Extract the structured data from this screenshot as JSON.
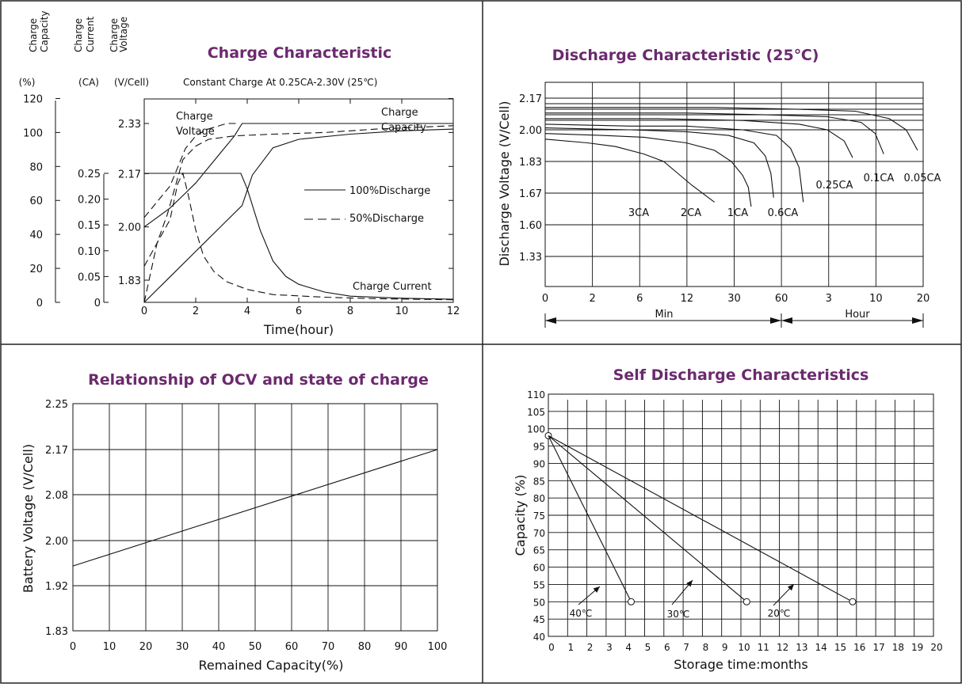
{
  "colors": {
    "title": "#6b2a6e",
    "line": "#111111",
    "grid": "#111111",
    "frame": "#222222"
  },
  "chart_data": [
    {
      "id": "charge",
      "type": "line",
      "title": "Charge Characteristic",
      "subtitle": "Constant Charge At 0.25CA-2.30V  (25℃)",
      "xlabel": "Time(hour)",
      "x_ticks": [
        "0",
        "2",
        "4",
        "6",
        "8",
        "10",
        "12"
      ],
      "xlim": [
        0,
        12
      ],
      "axes": [
        {
          "key": "capacity",
          "header": [
            "Charge",
            "Capacity"
          ],
          "unit": "(%)",
          "ticks": [
            "120",
            "100",
            "80",
            "60",
            "40",
            "20",
            "0"
          ],
          "lim": [
            0,
            120
          ]
        },
        {
          "key": "current",
          "header": [
            "Charge",
            "Current"
          ],
          "unit": "(CA)",
          "ticks": [
            "0.25",
            "0.20",
            "0.15",
            "0.10",
            "0.05",
            "0"
          ],
          "lim": [
            0,
            0.25
          ]
        },
        {
          "key": "voltage",
          "header": [
            "Charge",
            "Voltage"
          ],
          "unit": "(V/Cell)",
          "ticks": [
            "2.33",
            "2.17",
            "2.00",
            "1.83"
          ],
          "lim": [
            1.83,
            2.33
          ]
        }
      ],
      "legend": [
        {
          "label": "100%Discharge",
          "dash": "solid"
        },
        {
          "label": "50%Discharge",
          "dash": "dashed"
        }
      ],
      "annotations": {
        "voltage": [
          "Charge",
          "Voltage"
        ],
        "capacity": [
          "Charge",
          "Capacity"
        ],
        "current": "Charge Current"
      },
      "series": [
        {
          "quantity": "voltage",
          "discharge": "100%",
          "dash": "solid",
          "x": [
            0,
            0.5,
            1,
            1.5,
            2,
            2.5,
            3,
            3.5,
            3.8,
            5,
            7,
            9,
            12
          ],
          "y": [
            2.0,
            2.03,
            2.06,
            2.1,
            2.14,
            2.19,
            2.24,
            2.29,
            2.33,
            2.33,
            2.33,
            2.33,
            2.33
          ]
        },
        {
          "quantity": "voltage",
          "discharge": "50%",
          "dash": "dashed",
          "x": [
            0,
            0.3,
            0.6,
            1.0,
            1.3,
            1.6,
            2,
            2.4,
            2.8,
            3.2,
            3.6
          ],
          "y": [
            2.03,
            2.06,
            2.09,
            2.13,
            2.19,
            2.25,
            2.29,
            2.31,
            2.32,
            2.33,
            2.33
          ]
        },
        {
          "quantity": "capacity",
          "discharge": "100%",
          "dash": "solid",
          "x": [
            0,
            1,
            2,
            3,
            3.8,
            4.2,
            5,
            6,
            8,
            10,
            12
          ],
          "y": [
            0,
            15,
            30,
            45,
            57,
            75,
            91,
            96,
            99,
            101,
            102
          ]
        },
        {
          "quantity": "capacity",
          "discharge": "50%",
          "dash": "dashed",
          "x": [
            0,
            0.5,
            0.9,
            1.5,
            2,
            2.5,
            3.5,
            5,
            7,
            9,
            12
          ],
          "y": [
            0,
            35,
            52,
            84,
            92,
            96,
            98,
            99,
            100,
            102,
            104
          ]
        },
        {
          "quantity": "current",
          "discharge": "100%",
          "dash": "solid",
          "x": [
            0,
            3.75,
            4,
            4.5,
            5,
            5.5,
            6,
            7,
            8,
            10,
            12
          ],
          "y": [
            0.25,
            0.25,
            0.22,
            0.14,
            0.08,
            0.05,
            0.035,
            0.02,
            0.012,
            0.008,
            0.006
          ]
        },
        {
          "quantity": "current",
          "discharge": "50%",
          "dash": "dashed",
          "x": [
            0,
            1.0,
            1.3,
            1.5,
            1.7,
            2,
            2.3,
            2.7,
            3.2,
            4,
            5,
            7,
            9,
            12
          ],
          "y": [
            0.07,
            0.16,
            0.23,
            0.25,
            0.21,
            0.14,
            0.09,
            0.06,
            0.04,
            0.025,
            0.015,
            0.01,
            0.007,
            0.005
          ]
        }
      ]
    },
    {
      "id": "discharge",
      "type": "line",
      "title": "Discharge Characteristic  (25℃)",
      "ylabel": "Discharge Voltage (V/Cell)",
      "y_ticks": [
        "2.17",
        "2.00",
        "1.83",
        "1.67",
        "1.60",
        "1.33"
      ],
      "x_ticks": [
        "0",
        "2",
        "6",
        "12",
        "30",
        "60",
        "3",
        "10",
        "20"
      ],
      "x_units": [
        {
          "label": "Min",
          "from": "0",
          "to": "60"
        },
        {
          "label": "Hour",
          "from": "60",
          "to": "20"
        }
      ],
      "grid": true,
      "series": [
        {
          "name": "3CA",
          "x": [
            0,
            1.5,
            2.5,
            3.5,
            4.2,
            4.7,
            5.2,
            6
          ],
          "y": [
            1.95,
            1.93,
            1.91,
            1.87,
            1.83,
            1.77,
            1.71,
            1.65
          ]
        },
        {
          "name": "2CA",
          "x": [
            0,
            2,
            3.5,
            5,
            6,
            6.6,
            7,
            7.2,
            7.3
          ],
          "y": [
            1.98,
            1.97,
            1.96,
            1.93,
            1.89,
            1.83,
            1.76,
            1.7,
            1.64
          ]
        },
        {
          "name": "1CA",
          "x": [
            0,
            3,
            5,
            6.5,
            7.4,
            7.8,
            8.0,
            8.1
          ],
          "y": [
            2.01,
            2.0,
            1.99,
            1.97,
            1.93,
            1.86,
            1.77,
            1.66
          ]
        },
        {
          "name": "0.6CA",
          "x": [
            0,
            3,
            5,
            7,
            8.2,
            8.7,
            9.0,
            9.15
          ],
          "y": [
            2.03,
            2.02,
            2.02,
            2.0,
            1.97,
            1.9,
            1.8,
            1.65
          ]
        },
        {
          "name": "0.25CA",
          "x": [
            0,
            4,
            7,
            9,
            10,
            10.6,
            10.9
          ],
          "y": [
            2.06,
            2.06,
            2.05,
            2.03,
            2.0,
            1.94,
            1.85
          ]
        },
        {
          "name": "0.1CA",
          "x": [
            0,
            5,
            8,
            10,
            11.2,
            11.7,
            12.0
          ],
          "y": [
            2.09,
            2.09,
            2.08,
            2.07,
            2.04,
            1.98,
            1.87
          ]
        },
        {
          "name": "0.05CA",
          "x": [
            0,
            6,
            9,
            11,
            12.2,
            12.8,
            13.2
          ],
          "y": [
            2.12,
            2.12,
            2.11,
            2.1,
            2.06,
            2.0,
            1.89
          ]
        }
      ]
    },
    {
      "id": "ocv",
      "type": "line",
      "title": "Relationship of OCV and state of charge",
      "xlabel": "Remained Capacity(%)",
      "ylabel": "Battery Voltage (V/Cell)",
      "x_ticks": [
        "0",
        "10",
        "20",
        "30",
        "40",
        "50",
        "60",
        "70",
        "80",
        "90",
        "100"
      ],
      "y_ticks": [
        "2.25",
        "2.17",
        "2.08",
        "2.00",
        "1.92",
        "1.83"
      ],
      "grid": true,
      "series": [
        {
          "x": [
            0,
            100
          ],
          "y": [
            1.955,
            2.17
          ]
        }
      ]
    },
    {
      "id": "self",
      "type": "line",
      "title": "Self Discharge Characteristics",
      "xlabel": "Storage time:months",
      "ylabel": "Capacity (%)",
      "x_ticks": [
        "0",
        "1",
        "2",
        "3",
        "4",
        "5",
        "6",
        "7",
        "8",
        "9",
        "10",
        "11",
        "12",
        "13",
        "14",
        "15",
        "16",
        "17",
        "18",
        "19",
        "20"
      ],
      "y_ticks": [
        "110",
        "105",
        "100",
        "95",
        "90",
        "85",
        "80",
        "75",
        "70",
        "65",
        "60",
        "55",
        "50",
        "45",
        "40"
      ],
      "xlim": [
        0,
        20
      ],
      "ylim": [
        40,
        110
      ],
      "grid": true,
      "series": [
        {
          "name": "40℃",
          "x": [
            0,
            4.3
          ],
          "y": [
            98,
            50
          ]
        },
        {
          "name": "30℃",
          "x": [
            0,
            10.3
          ],
          "y": [
            98,
            50
          ]
        },
        {
          "name": "20℃",
          "x": [
            0,
            15.8
          ],
          "y": [
            98,
            50
          ]
        }
      ]
    }
  ]
}
